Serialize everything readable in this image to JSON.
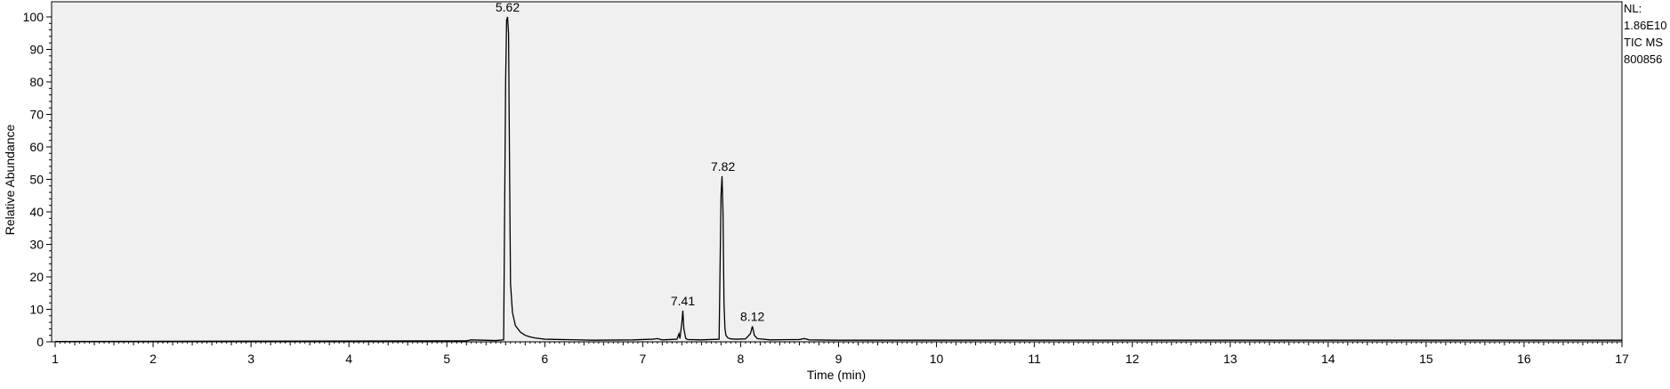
{
  "chart_data": {
    "type": "line",
    "title": "",
    "xlabel": "Time (min)",
    "ylabel": "Relative Abundance",
    "xlim": [
      1,
      17
    ],
    "ylim": [
      0,
      100
    ],
    "x_ticks": [
      "1",
      "2",
      "3",
      "4",
      "5",
      "6",
      "7",
      "8",
      "9",
      "10",
      "11",
      "12",
      "13",
      "14",
      "15",
      "16",
      "17"
    ],
    "y_ticks": [
      "0",
      "10",
      "20",
      "30",
      "40",
      "50",
      "60",
      "70",
      "80",
      "90",
      "100"
    ],
    "grid": false,
    "legend": "none",
    "info": [
      "NL:",
      "1.86E10",
      "TIC  MS",
      "800856"
    ],
    "peak_labels": [
      {
        "text": "5.62",
        "x": 5.62,
        "y": 100
      },
      {
        "text": "7.41",
        "x": 7.41,
        "y": 9.6
      },
      {
        "text": "7.82",
        "x": 7.82,
        "y": 51
      },
      {
        "text": "8.12",
        "x": 8.12,
        "y": 4.8
      }
    ],
    "series": [
      {
        "x": [
          1.0,
          5.0,
          5.2,
          5.25,
          5.5,
          5.58,
          5.6,
          5.61,
          5.62,
          5.63,
          5.64,
          5.65,
          5.67,
          5.7,
          5.75,
          5.8,
          5.85,
          5.9,
          6.0,
          6.5,
          6.9,
          7.1,
          7.15,
          7.2,
          7.35,
          7.37,
          7.38,
          7.4,
          7.41,
          7.42,
          7.44,
          7.46,
          7.6,
          7.78,
          7.8,
          7.81,
          7.82,
          7.83,
          7.84,
          7.85,
          7.87,
          7.9,
          7.95,
          8.05,
          8.1,
          8.12,
          8.14,
          8.17,
          8.3,
          8.6,
          8.65,
          8.7,
          9.0,
          17.0
        ],
        "y": [
          0.1,
          0.3,
          0.3,
          0.6,
          0.4,
          0.6,
          80,
          99,
          100,
          95,
          55,
          18,
          9,
          5,
          3,
          2,
          1.5,
          1.2,
          0.8,
          0.5,
          0.6,
          0.8,
          1.0,
          0.6,
          0.8,
          2.5,
          1.0,
          6,
          9.6,
          4,
          1.0,
          0.7,
          0.6,
          0.8,
          45,
          51,
          40,
          12,
          4,
          2,
          1.2,
          0.9,
          0.8,
          0.9,
          2.5,
          4.8,
          2.0,
          1.0,
          0.6,
          0.7,
          1.0,
          0.6,
          0.5,
          0.5
        ]
      }
    ]
  }
}
